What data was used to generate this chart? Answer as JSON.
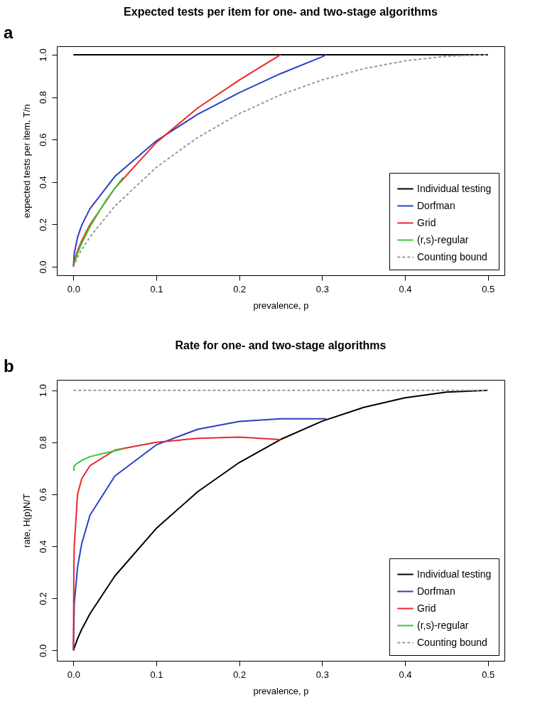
{
  "chart_data": [
    {
      "type": "line",
      "title": "Expected tests per item for one- and two-stage algorithms",
      "xlabel": "prevalence, p",
      "ylabel": "expected tests per item, T/n",
      "annotations": [
        "a"
      ],
      "legend": "bottom right",
      "xlim": [
        -0.02,
        0.52
      ],
      "ylim": [
        -0.04,
        1.04
      ],
      "xticks": [
        {
          "value": 0,
          "label": "0.0"
        },
        {
          "value": 0.1,
          "label": "0.1"
        },
        {
          "value": 0.2,
          "label": "0.2"
        },
        {
          "value": 0.3,
          "label": "0.3"
        },
        {
          "value": 0.4,
          "label": "0.4"
        },
        {
          "value": 0.5,
          "label": "0.5"
        }
      ],
      "yticks": [
        {
          "value": 0,
          "label": "0.0"
        },
        {
          "value": 0.2,
          "label": "0.2"
        },
        {
          "value": 0.4,
          "label": "0.4"
        },
        {
          "value": 0.6,
          "label": "0.6"
        },
        {
          "value": 0.8,
          "label": "0.8"
        },
        {
          "value": 1,
          "label": "1.0"
        }
      ],
      "series": [
        {
          "name": "Individual testing",
          "color": "#000000",
          "x": [
            0,
            0.5
          ],
          "values": [
            1,
            1
          ]
        },
        {
          "name": "Dorfman",
          "color": "#2b3fc4",
          "x": [
            0,
            0.001,
            0.005,
            0.01,
            0.02,
            0.05,
            0.1,
            0.15,
            0.2,
            0.25,
            0.3,
            0.305
          ],
          "values": [
            0,
            0.063,
            0.139,
            0.196,
            0.274,
            0.426,
            0.594,
            0.719,
            0.821,
            0.911,
            0.99,
            1
          ]
        },
        {
          "name": "Grid",
          "color": "#e8292a",
          "x": [
            0,
            0.001,
            0.005,
            0.01,
            0.02,
            0.05,
            0.1,
            0.15,
            0.2,
            0.25
          ],
          "values": [
            0,
            0.029,
            0.075,
            0.123,
            0.199,
            0.371,
            0.586,
            0.749,
            0.88,
            1
          ]
        },
        {
          "name": "(r,s)-regular",
          "color": "#33cc33",
          "x": [
            0.001,
            0.005,
            0.01,
            0.02,
            0.04,
            0.06
          ],
          "values": [
            0.016,
            0.063,
            0.111,
            0.189,
            0.318,
            0.422
          ]
        },
        {
          "name": "Counting bound",
          "color": "#999999",
          "line_style": "dashed",
          "x": [
            0,
            0.005,
            0.01,
            0.02,
            0.05,
            0.1,
            0.15,
            0.2,
            0.25,
            0.3,
            0.35,
            0.4,
            0.45,
            0.5
          ],
          "values": [
            0,
            0.045,
            0.081,
            0.141,
            0.286,
            0.469,
            0.61,
            0.722,
            0.811,
            0.881,
            0.934,
            0.971,
            0.993,
            1
          ]
        }
      ]
    },
    {
      "type": "line",
      "title": "Rate for one- and two-stage algorithms",
      "xlabel": "prevalence, p",
      "ylabel": "rate, H(p)N/T",
      "annotations": [
        "b"
      ],
      "legend": "bottom right",
      "xlim": [
        -0.02,
        0.52
      ],
      "ylim": [
        -0.04,
        1.04
      ],
      "xticks": [
        {
          "value": 0,
          "label": "0.0"
        },
        {
          "value": 0.1,
          "label": "0.1"
        },
        {
          "value": 0.2,
          "label": "0.2"
        },
        {
          "value": 0.3,
          "label": "0.3"
        },
        {
          "value": 0.4,
          "label": "0.4"
        },
        {
          "value": 0.5,
          "label": "0.5"
        }
      ],
      "yticks": [
        {
          "value": 0,
          "label": "0.0"
        },
        {
          "value": 0.2,
          "label": "0.2"
        },
        {
          "value": 0.4,
          "label": "0.4"
        },
        {
          "value": 0.6,
          "label": "0.6"
        },
        {
          "value": 0.8,
          "label": "0.8"
        },
        {
          "value": 1,
          "label": "1.0"
        }
      ],
      "series": [
        {
          "name": "Individual testing",
          "color": "#000000",
          "x": [
            0,
            0.005,
            0.01,
            0.02,
            0.05,
            0.1,
            0.15,
            0.2,
            0.25,
            0.3,
            0.35,
            0.4,
            0.45,
            0.5
          ],
          "values": [
            0,
            0.045,
            0.081,
            0.141,
            0.286,
            0.469,
            0.61,
            0.722,
            0.811,
            0.881,
            0.934,
            0.971,
            0.993,
            1
          ]
        },
        {
          "name": "Dorfman",
          "color": "#2b3fc4",
          "x": [
            0,
            0.001,
            0.005,
            0.01,
            0.02,
            0.05,
            0.1,
            0.15,
            0.2,
            0.25,
            0.305
          ],
          "values": [
            0,
            0.18,
            0.32,
            0.41,
            0.52,
            0.67,
            0.79,
            0.85,
            0.88,
            0.89,
            0.89
          ]
        },
        {
          "name": "Grid",
          "color": "#e8292a",
          "x": [
            0,
            0.0005,
            0.001,
            0.005,
            0.01,
            0.02,
            0.05,
            0.1,
            0.15,
            0.2,
            0.25
          ],
          "values": [
            0,
            0.3,
            0.4,
            0.6,
            0.66,
            0.71,
            0.77,
            0.8,
            0.815,
            0.82,
            0.81
          ]
        },
        {
          "name": "(r,s)-regular",
          "color": "#33cc33",
          "x": [
            0.0005,
            0.001,
            0.005,
            0.01,
            0.02,
            0.04,
            0.06
          ],
          "values": [
            0.69,
            0.71,
            0.72,
            0.73,
            0.745,
            0.76,
            0.775
          ]
        },
        {
          "name": "Counting bound",
          "color": "#999999",
          "line_style": "dashed",
          "x": [
            0,
            0.5
          ],
          "values": [
            1,
            1
          ]
        }
      ]
    }
  ]
}
